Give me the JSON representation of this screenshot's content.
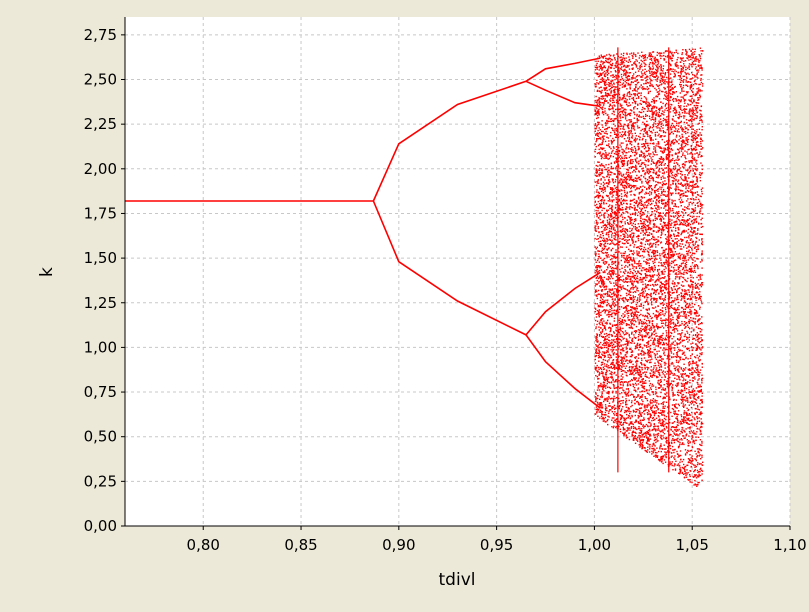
{
  "chart_data": {
    "type": "scatter",
    "title": "",
    "xlabel": "tdivl",
    "ylabel": "k",
    "xlim": [
      0.76,
      1.1
    ],
    "ylim": [
      0.0,
      2.85
    ],
    "x_ticks": [
      0.8,
      0.85,
      0.9,
      0.95,
      1.0,
      1.05,
      1.1
    ],
    "x_tick_labels": [
      "0,80",
      "0,85",
      "0,90",
      "0,95",
      "1,00",
      "1,05",
      "1,10"
    ],
    "y_ticks": [
      0.0,
      0.25,
      0.5,
      0.75,
      1.0,
      1.25,
      1.5,
      1.75,
      2.0,
      2.25,
      2.5,
      2.75
    ],
    "y_tick_labels": [
      "0,00",
      "0,25",
      "0,50",
      "0,75",
      "1,00",
      "1,25",
      "1,50",
      "1,75",
      "2,00",
      "2,25",
      "2,50",
      "2,75"
    ],
    "grid": true,
    "series_color": "#ff0000",
    "branches": [
      {
        "x": [
          0.76,
          0.887
        ],
        "y": [
          1.82,
          1.82
        ]
      },
      {
        "x": [
          0.887,
          0.9,
          0.93,
          0.965
        ],
        "y": [
          1.82,
          2.14,
          2.36,
          2.49
        ]
      },
      {
        "x": [
          0.887,
          0.9,
          0.93,
          0.965
        ],
        "y": [
          1.82,
          1.48,
          1.26,
          1.07
        ]
      },
      {
        "x": [
          0.965,
          0.975,
          0.99,
          1.003
        ],
        "y": [
          2.49,
          2.56,
          2.59,
          2.62
        ]
      },
      {
        "x": [
          0.965,
          0.975,
          0.99,
          1.003
        ],
        "y": [
          2.49,
          2.44,
          2.37,
          2.35
        ]
      },
      {
        "x": [
          0.965,
          0.975,
          0.99,
          1.003
        ],
        "y": [
          1.07,
          1.2,
          1.33,
          1.42
        ]
      },
      {
        "x": [
          0.965,
          0.975,
          0.99,
          1.003
        ],
        "y": [
          1.07,
          0.92,
          0.77,
          0.66
        ]
      }
    ],
    "chaotic_region": {
      "x_start": 1.0,
      "x_end": 1.055,
      "y_min": 0.2,
      "y_max": 2.68
    },
    "windows": [
      1.012,
      1.038
    ]
  },
  "plot_bg": "#ffffff",
  "page_bg": "#ece9d8"
}
